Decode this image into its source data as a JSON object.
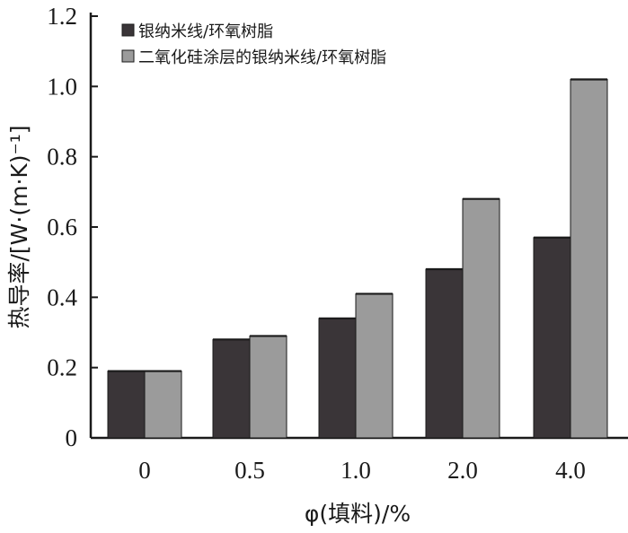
{
  "chart_data": {
    "type": "bar",
    "categories": [
      "0",
      "0.5",
      "1.0",
      "2.0",
      "4.0"
    ],
    "series": [
      {
        "name": "银纳米线/环氧树脂",
        "values": [
          0.19,
          0.28,
          0.34,
          0.48,
          0.57
        ],
        "color": "#3a3538"
      },
      {
        "name": "二氧化硅涂层的银纳米线/环氧树脂",
        "values": [
          0.19,
          0.29,
          0.41,
          0.68,
          1.02
        ],
        "color": "#9b9b9b"
      }
    ],
    "title": "",
    "xlabel": "φ(填料)/%",
    "ylabel": "热导率/[W·(m·K)⁻¹]",
    "ylim": [
      0,
      1.2
    ],
    "yticks": [
      "0",
      "0.2",
      "0.4",
      "0.6",
      "0.8",
      "1.0",
      "1.2"
    ],
    "grid": false,
    "legend_position": "top-left"
  }
}
